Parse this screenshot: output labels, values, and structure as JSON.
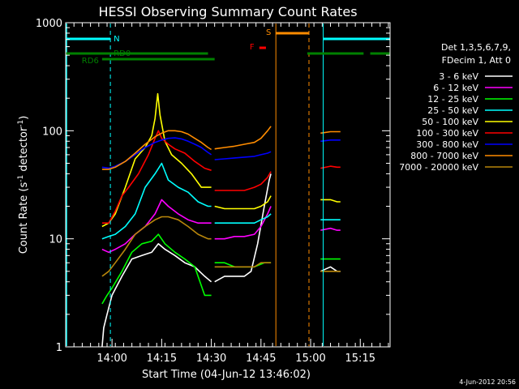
{
  "chart_data": {
    "type": "line",
    "title": "HESSI Observing Summary Count Rates",
    "xlabel": "Start Time (04-Jun-12 13:46:02)",
    "ylabel_main": "Count Rate (s",
    "ylabel_sup1": "-1",
    "ylabel_mid": " detector",
    "ylabel_sup2": "-1",
    "ylabel_end": ")",
    "y_scale": "log",
    "xlim_minutes_after_1346": [
      0,
      98
    ],
    "ylim": [
      1,
      1000
    ],
    "x_ticks": [
      {
        "label": "14:00",
        "t": 14
      },
      {
        "label": "14:15",
        "t": 29
      },
      {
        "label": "14:30",
        "t": 44
      },
      {
        "label": "14:45",
        "t": 59
      },
      {
        "label": "15:00",
        "t": 74
      },
      {
        "label": "15:15",
        "t": 89
      }
    ],
    "y_ticks": [
      {
        "label": "1",
        "v": 1
      },
      {
        "label": "10",
        "v": 10
      },
      {
        "label": "100",
        "v": 100
      },
      {
        "label": "1000",
        "v": 1000
      }
    ],
    "legend_header": [
      "Det 1,3,5,6,7,9,",
      "FDecim 1, Att 0"
    ],
    "legend_placement": "right",
    "series": [
      {
        "name": "3 - 6 keV",
        "color": "#ffffff",
        "segments": [
          [
            [
              11,
              1.0
            ],
            [
              11.5,
              1.5
            ],
            [
              12.5,
              2.0
            ],
            [
              14,
              3.0
            ],
            [
              17,
              4.5
            ],
            [
              20,
              6.5
            ],
            [
              23,
              7.0
            ],
            [
              26,
              7.5
            ],
            [
              28,
              9.0
            ],
            [
              30,
              8.0
            ],
            [
              33,
              7.0
            ],
            [
              36,
              6.0
            ],
            [
              39,
              5.5
            ],
            [
              42,
              4.5
            ],
            [
              44,
              4.0
            ]
          ],
          [
            [
              45,
              4.0
            ],
            [
              48,
              4.5
            ],
            [
              51,
              4.5
            ],
            [
              54,
              4.5
            ],
            [
              56,
              5.0
            ],
            [
              58,
              9.0
            ],
            [
              60,
              20
            ],
            [
              61.5,
              35
            ],
            [
              62,
              40
            ]
          ],
          [
            [
              77,
              5.0
            ],
            [
              80,
              5.5
            ],
            [
              82,
              5.0
            ],
            [
              83,
              5.0
            ]
          ]
        ]
      },
      {
        "name": "6 - 12 keV",
        "color": "#ff00ff",
        "segments": [
          [
            [
              11,
              8.0
            ],
            [
              13,
              7.5
            ],
            [
              15,
              8.0
            ],
            [
              18,
              9.0
            ],
            [
              21,
              11
            ],
            [
              24,
              13
            ],
            [
              27,
              17
            ],
            [
              29,
              23
            ],
            [
              31,
              20
            ],
            [
              34,
              17
            ],
            [
              37,
              15
            ],
            [
              40,
              14
            ],
            [
              43,
              14
            ],
            [
              44,
              14
            ]
          ],
          [
            [
              45,
              10
            ],
            [
              48,
              10
            ],
            [
              51,
              10.5
            ],
            [
              54,
              10.5
            ],
            [
              57,
              11
            ],
            [
              59,
              13
            ],
            [
              61,
              17
            ],
            [
              62,
              20
            ]
          ],
          [
            [
              77,
              12
            ],
            [
              80,
              12.5
            ],
            [
              82,
              12
            ],
            [
              83,
              12
            ]
          ]
        ]
      },
      {
        "name": "12 - 25 keV",
        "color": "#00ff00",
        "segments": [
          [
            [
              11,
              2.5
            ],
            [
              12.5,
              3.0
            ],
            [
              14,
              3.5
            ],
            [
              17,
              5.0
            ],
            [
              20,
              7.5
            ],
            [
              23,
              9.0
            ],
            [
              26,
              9.5
            ],
            [
              28,
              11
            ],
            [
              30,
              9.0
            ],
            [
              33,
              7.5
            ],
            [
              36,
              6.5
            ],
            [
              39,
              5.5
            ],
            [
              42,
              3.0
            ],
            [
              44,
              3.0
            ]
          ],
          [
            [
              45,
              6.0
            ],
            [
              48,
              6.0
            ],
            [
              51,
              5.5
            ],
            [
              54,
              5.5
            ],
            [
              57,
              5.5
            ],
            [
              60,
              6.0
            ],
            [
              62,
              6.0
            ]
          ],
          [
            [
              77,
              6.5
            ],
            [
              80,
              6.5
            ],
            [
              82,
              6.5
            ],
            [
              83,
              6.5
            ]
          ]
        ]
      },
      {
        "name": "25 - 50 keV",
        "color": "#00ffff",
        "segments": [
          [
            [
              11,
              10
            ],
            [
              13,
              10.5
            ],
            [
              15,
              11
            ],
            [
              18,
              13
            ],
            [
              21,
              17
            ],
            [
              24,
              30
            ],
            [
              27,
              40
            ],
            [
              29,
              50
            ],
            [
              31,
              35
            ],
            [
              34,
              30
            ],
            [
              37,
              27
            ],
            [
              40,
              22
            ],
            [
              43,
              20
            ],
            [
              44,
              20
            ]
          ],
          [
            [
              45,
              14
            ],
            [
              48,
              14
            ],
            [
              51,
              14
            ],
            [
              54,
              14
            ],
            [
              57,
              14
            ],
            [
              59,
              15
            ],
            [
              61,
              16
            ],
            [
              62,
              17
            ]
          ],
          [
            [
              77,
              15
            ],
            [
              80,
              15
            ],
            [
              82,
              15
            ],
            [
              83,
              15
            ]
          ]
        ]
      },
      {
        "name": "50 - 100 keV",
        "color": "#ffff00",
        "segments": [
          [
            [
              11,
              13
            ],
            [
              13,
              14
            ],
            [
              15,
              17
            ],
            [
              18,
              30
            ],
            [
              21,
              55
            ],
            [
              24,
              70
            ],
            [
              26,
              90
            ],
            [
              27,
              130
            ],
            [
              27.8,
              220
            ],
            [
              28.5,
              140
            ],
            [
              30,
              80
            ],
            [
              32,
              60
            ],
            [
              35,
              50
            ],
            [
              38,
              40
            ],
            [
              41,
              30
            ],
            [
              44,
              30
            ]
          ],
          [
            [
              45,
              20
            ],
            [
              48,
              19
            ],
            [
              51,
              19
            ],
            [
              54,
              19
            ],
            [
              57,
              19
            ],
            [
              59,
              20
            ],
            [
              61,
              22
            ],
            [
              62,
              25
            ]
          ],
          [
            [
              77,
              23
            ],
            [
              80,
              23
            ],
            [
              82,
              22
            ],
            [
              83,
              22
            ]
          ]
        ]
      },
      {
        "name": "100 - 300 keV",
        "color": "#ff0000",
        "segments": [
          [
            [
              11,
              14
            ],
            [
              13,
              14
            ],
            [
              15,
              18
            ],
            [
              17,
              25
            ],
            [
              19,
              30
            ],
            [
              22,
              40
            ],
            [
              25,
              60
            ],
            [
              27,
              85
            ],
            [
              28,
              100
            ],
            [
              29,
              85
            ],
            [
              31,
              75
            ],
            [
              33,
              68
            ],
            [
              36,
              62
            ],
            [
              39,
              52
            ],
            [
              42,
              45
            ],
            [
              44,
              43
            ]
          ],
          [
            [
              45,
              28
            ],
            [
              48,
              28
            ],
            [
              51,
              28
            ],
            [
              54,
              28
            ],
            [
              57,
              30
            ],
            [
              59,
              32
            ],
            [
              61,
              37
            ],
            [
              62,
              42
            ]
          ],
          [
            [
              77,
              45
            ],
            [
              80,
              47
            ],
            [
              82,
              46
            ],
            [
              83,
              46
            ]
          ]
        ]
      },
      {
        "name": "300 - 800 keV",
        "color": "#0000ff",
        "segments": [
          [
            [
              11,
              46
            ],
            [
              13,
              45
            ],
            [
              15,
              47
            ],
            [
              18,
              52
            ],
            [
              21,
              60
            ],
            [
              24,
              70
            ],
            [
              27,
              78
            ],
            [
              29,
              82
            ],
            [
              31,
              85
            ],
            [
              33,
              86
            ],
            [
              35,
              84
            ],
            [
              37,
              80
            ],
            [
              39,
              75
            ],
            [
              41,
              70
            ],
            [
              43,
              63
            ],
            [
              44,
              60
            ]
          ],
          [
            [
              45,
              54
            ],
            [
              48,
              55
            ],
            [
              51,
              56
            ],
            [
              54,
              57
            ],
            [
              57,
              58
            ],
            [
              59,
              60
            ],
            [
              61,
              62
            ],
            [
              62,
              64
            ]
          ],
          [
            [
              77,
              80
            ],
            [
              80,
              82
            ],
            [
              82,
              82
            ],
            [
              83,
              82
            ]
          ]
        ]
      },
      {
        "name": "800 - 7000 keV",
        "color": "#ff8c00",
        "segments": [
          [
            [
              11,
              44
            ],
            [
              13,
              44
            ],
            [
              15,
              46
            ],
            [
              18,
              52
            ],
            [
              21,
              62
            ],
            [
              24,
              75
            ],
            [
              27,
              88
            ],
            [
              29,
              95
            ],
            [
              31,
              100
            ],
            [
              33,
              100
            ],
            [
              35,
              98
            ],
            [
              37,
              93
            ],
            [
              39,
              85
            ],
            [
              41,
              78
            ],
            [
              43,
              70
            ],
            [
              44,
              67
            ]
          ],
          [
            [
              45,
              68
            ],
            [
              48,
              70
            ],
            [
              51,
              72
            ],
            [
              54,
              75
            ],
            [
              57,
              78
            ],
            [
              59,
              85
            ],
            [
              61,
              100
            ],
            [
              62,
              110
            ]
          ],
          [
            [
              77,
              95
            ],
            [
              80,
              98
            ],
            [
              82,
              98
            ],
            [
              83,
              98
            ]
          ]
        ]
      },
      {
        "name": "7000 - 20000 keV",
        "color": "#b8860b",
        "segments": [
          [
            [
              11,
              4.5
            ],
            [
              13,
              5.0
            ],
            [
              15,
              6.0
            ],
            [
              18,
              8.0
            ],
            [
              21,
              11
            ],
            [
              24,
              13
            ],
            [
              27,
              15
            ],
            [
              29,
              16
            ],
            [
              31,
              16
            ],
            [
              34,
              15
            ],
            [
              37,
              13
            ],
            [
              40,
              11
            ],
            [
              43,
              10
            ],
            [
              44,
              10
            ]
          ],
          [
            [
              45,
              5.5
            ],
            [
              48,
              5.5
            ],
            [
              51,
              5.5
            ],
            [
              54,
              5.5
            ],
            [
              57,
              5.5
            ],
            [
              59,
              6.0
            ],
            [
              61,
              6.0
            ],
            [
              62,
              6.0
            ]
          ],
          [
            [
              77,
              5.0
            ],
            [
              80,
              5.0
            ],
            [
              82,
              5.0
            ],
            [
              83,
              5.0
            ]
          ]
        ]
      }
    ],
    "annotation_colors": {
      "night": "#00ffff",
      "saa": "#ff8c00",
      "flare": "#ff0000",
      "decimation": "#008000"
    },
    "annotations": [
      {
        "label": "N",
        "color": "#00ffff"
      },
      {
        "label": "S",
        "color": "#ff8c00"
      },
      {
        "label": "F",
        "color": "#ff0000"
      },
      {
        "label": "RD0",
        "color": "#008000"
      },
      {
        "label": "RD6",
        "color": "#008000"
      }
    ],
    "night_intervals": [
      [
        0,
        13.5
      ],
      [
        77.8,
        98
      ]
    ],
    "saa_interval": [
      63.5,
      73.5
    ],
    "flare_interval": [
      58.5,
      60.5
    ],
    "rd0_intervals": [
      [
        0,
        43
      ],
      [
        73,
        90
      ],
      [
        92,
        98
      ]
    ],
    "rd6_interval": [
      11,
      45
    ],
    "grid": false
  },
  "timestamp": "4-Jun-2012 20:56"
}
